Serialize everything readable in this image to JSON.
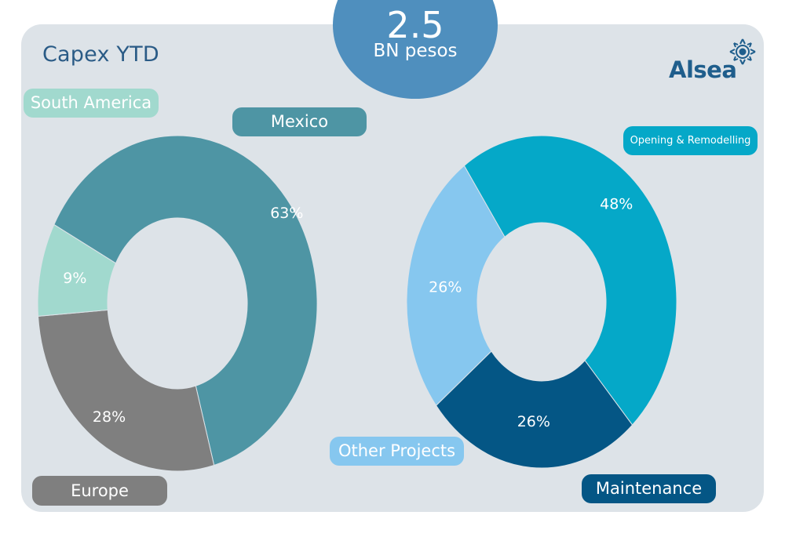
{
  "header": {
    "title": "Capex YTD",
    "total_value": "2.5",
    "total_unit": "BN pesos",
    "brand": "Alsea"
  },
  "colors": {
    "panel": "#dde3e8",
    "mexico": "#4e95a4",
    "south_america": "#a1d9ce",
    "europe": "#7f7f7f",
    "opening": "#05a8c8",
    "other_projects": "#86c7ef",
    "maintenance": "#045685",
    "title": "#2a5b86",
    "total_bubble": "#4f8fbe"
  },
  "chart_data": [
    {
      "type": "pie",
      "title": "",
      "donut": true,
      "legend": "labels-around",
      "slices": [
        {
          "name": "Mexico",
          "value": 63,
          "label": "63%",
          "color": "#4e95a4"
        },
        {
          "name": "Europe",
          "value": 28,
          "label": "28%",
          "color": "#7f7f7f"
        },
        {
          "name": "South America",
          "value": 9,
          "label": "9%",
          "color": "#a1d9ce"
        }
      ]
    },
    {
      "type": "pie",
      "title": "",
      "donut": true,
      "legend": "labels-around",
      "slices": [
        {
          "name": "Opening & Remodelling",
          "value": 48,
          "label": "48%",
          "color": "#05a8c8"
        },
        {
          "name": "Maintenance",
          "value": 26,
          "label": "26%",
          "color": "#045685"
        },
        {
          "name": "Other Projects",
          "value": 26,
          "label": "26%",
          "color": "#86c7ef"
        }
      ]
    }
  ]
}
